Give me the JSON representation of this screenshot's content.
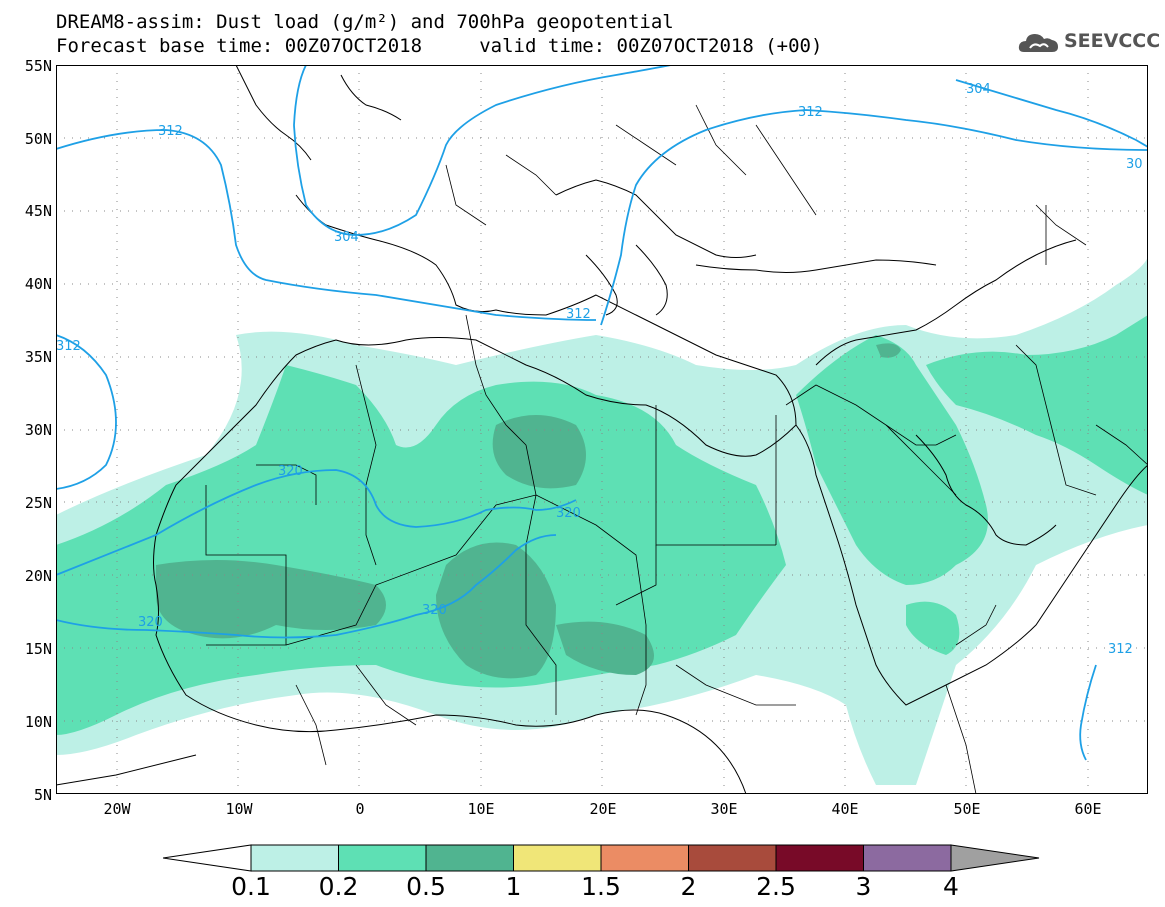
{
  "header": {
    "title_line1": "DREAM8-assim: Dust load (g/m²) and 700hPa geopotential",
    "title_line2": "Forecast base time: 00Z07OCT2018     valid time: 00Z07OCT2018 (+00)",
    "logo_text": "SEEVCCC"
  },
  "map": {
    "lat_range": [
      5,
      55
    ],
    "lon_range": [
      -25,
      65
    ],
    "lat_labels": [
      "55N",
      "50N",
      "45N",
      "40N",
      "35N",
      "30N",
      "25N",
      "20N",
      "15N",
      "10N",
      "5N"
    ],
    "lon_labels": [
      "20W",
      "10W",
      "0",
      "10E",
      "20E",
      "30E",
      "40E",
      "50E",
      "60E"
    ],
    "contour_labels": [
      "312",
      "304",
      "312",
      "312",
      "320",
      "320",
      "320",
      "320",
      "312",
      "304",
      "30",
      "312"
    ],
    "contour_color": "#1ea0e6",
    "coastline_color": "#000000"
  },
  "colorbar": {
    "labels": [
      "0.1",
      "0.2",
      "0.5",
      "1",
      "1.5",
      "2",
      "2.5",
      "3",
      "4"
    ],
    "colors": [
      "#ffffff",
      "#bdf0e6",
      "#5ee0b4",
      "#50b490",
      "#f0e678",
      "#eb8c64",
      "#a84b3c",
      "#780a28",
      "#8c6aa0",
      "#a0a0a0"
    ]
  }
}
